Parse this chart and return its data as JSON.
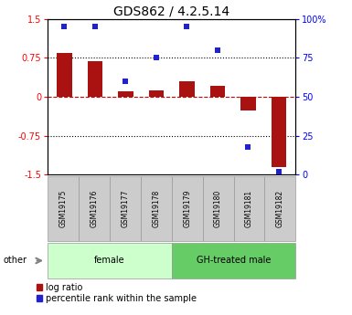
{
  "title": "GDS862 / 4.2.5.14",
  "samples": [
    "GSM19175",
    "GSM19176",
    "GSM19177",
    "GSM19178",
    "GSM19179",
    "GSM19180",
    "GSM19181",
    "GSM19182"
  ],
  "log_ratio": [
    0.85,
    0.68,
    0.1,
    0.12,
    0.3,
    0.22,
    -0.27,
    -1.35
  ],
  "percentile_rank": [
    95,
    95,
    60,
    75,
    95,
    80,
    18,
    2
  ],
  "bar_color": "#aa1111",
  "dot_color": "#2222cc",
  "ylim_left": [
    -1.5,
    1.5
  ],
  "ylim_right": [
    0,
    100
  ],
  "yticks_left": [
    -1.5,
    -0.75,
    0,
    0.75,
    1.5
  ],
  "yticks_right": [
    0,
    25,
    50,
    75,
    100
  ],
  "ytick_labels_right": [
    "0",
    "25",
    "50",
    "75",
    "100%"
  ],
  "ytick_labels_left": [
    "-1.5",
    "-0.75",
    "0",
    "0.75",
    "1.5"
  ],
  "hlines_dotted": [
    0.75,
    -0.75
  ],
  "hline_zero_color": "#cc0000",
  "hline_dotted_color": "#000000",
  "groups": [
    {
      "label": "female",
      "start": 0,
      "end": 3,
      "color": "#ccffcc"
    },
    {
      "label": "GH-treated male",
      "start": 4,
      "end": 7,
      "color": "#66cc66"
    }
  ],
  "other_label": "other",
  "legend_bar_label": "log ratio",
  "legend_dot_label": "percentile rank within the sample",
  "bar_width": 0.5,
  "sample_box_color": "#cccccc",
  "sample_box_edge": "#999999",
  "title_fontsize": 10,
  "tick_fontsize": 7,
  "legend_fontsize": 7
}
